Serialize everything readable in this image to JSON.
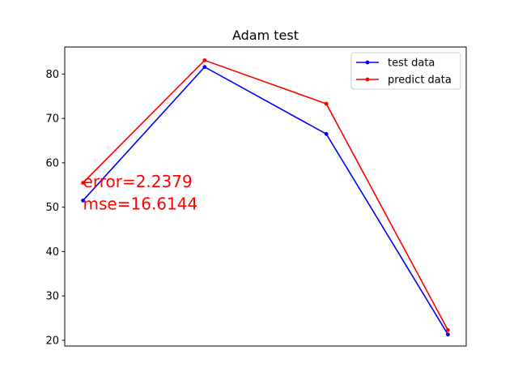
{
  "chart_data": {
    "type": "line",
    "title": "Adam test",
    "xlabel": "",
    "ylabel": "",
    "x": [
      0,
      1,
      2,
      3
    ],
    "xlim": [
      -0.15,
      3.15
    ],
    "ylim": [
      18.7,
      86.1
    ],
    "yticks": [
      20,
      30,
      40,
      50,
      60,
      70,
      80
    ],
    "xticks_visible": false,
    "grid": false,
    "legend_position": "top-right",
    "series": [
      {
        "name": "test data",
        "color": "#0000ff",
        "values": [
          51.5,
          81.6,
          66.5,
          21.3
        ]
      },
      {
        "name": "predict data",
        "color": "#ff0000",
        "values": [
          55.5,
          83.1,
          73.3,
          22.3
        ]
      }
    ],
    "annotations": [
      {
        "text": "error=2.2379",
        "color": "#ff0000",
        "x": 0,
        "y": 54.5
      },
      {
        "text": "mse=16.6144",
        "color": "#ff0000",
        "x": 0,
        "y": 49.5
      }
    ]
  }
}
